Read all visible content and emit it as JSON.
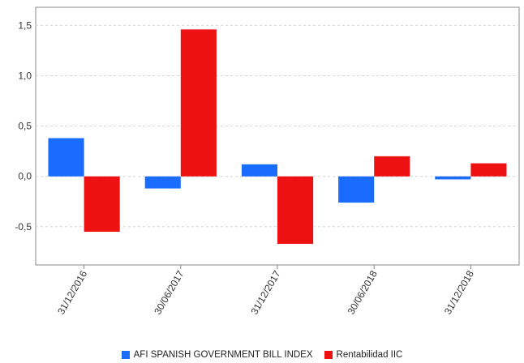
{
  "chart_data": {
    "type": "bar",
    "categories": [
      "31/12/2016",
      "30/06/2017",
      "31/12/2017",
      "30/06/2018",
      "31/12/2018"
    ],
    "series": [
      {
        "name": "AFI SPANISH GOVERNMENT BILL INDEX",
        "color": "#1a6cff",
        "values": [
          0.38,
          -0.12,
          0.12,
          -0.26,
          -0.03
        ]
      },
      {
        "name": "Rentabilidad IIC",
        "color": "#ee1111",
        "values": [
          -0.55,
          1.46,
          -0.67,
          0.2,
          0.13
        ]
      }
    ],
    "yticks": [
      "1,5",
      "1,0",
      "0,5",
      "0,0",
      "-0,5"
    ],
    "ytick_values": [
      1.5,
      1.0,
      0.5,
      0.0,
      -0.5
    ],
    "ylim": [
      -0.88,
      1.68
    ],
    "grid": true,
    "legend_position": "bottom"
  }
}
